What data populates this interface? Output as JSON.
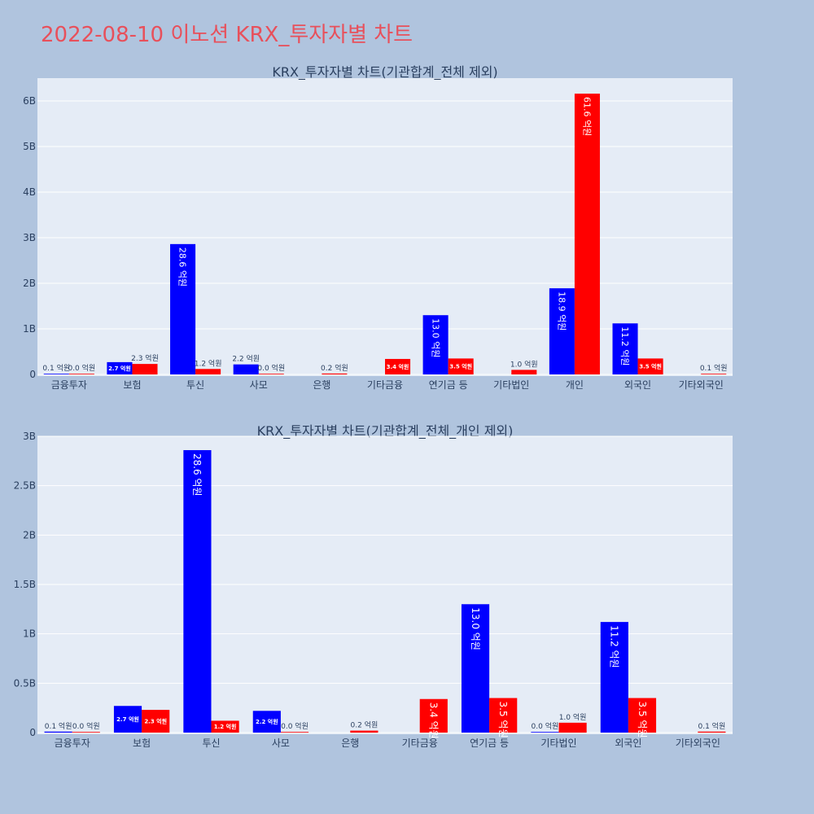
{
  "page_title": "2022-08-10 이노션 KRX_투자자별 차트",
  "colors": {
    "buy": "#0000ff",
    "sell": "#ff0000",
    "plot_bg": "#e5ecf6",
    "page_bg": "#b0c4de",
    "title": "#e8505b"
  },
  "chart_data": [
    {
      "type": "bar",
      "title": "KRX_투자자별 차트(기관합계_전체 제외)",
      "categories": [
        "금융투자",
        "보험",
        "투신",
        "사모",
        "은행",
        "기타금융",
        "연기금 등",
        "기타법인",
        "개인",
        "외국인",
        "기타외국인"
      ],
      "series": [
        {
          "color": "#0000ff",
          "values": [
            10000000,
            270000000,
            2860000000,
            220000000,
            null,
            null,
            1300000000,
            null,
            1890000000,
            1120000000,
            null
          ],
          "labels": [
            "0.1 억원",
            "2.7 억원",
            "28.6 억원",
            "2.2 억원",
            null,
            null,
            "13.0 억원",
            null,
            "18.9 억원",
            "11.2 억원",
            null
          ]
        },
        {
          "color": "#ff0000",
          "values": [
            0,
            230000000,
            120000000,
            0,
            20000000,
            340000000,
            350000000,
            100000000,
            6160000000,
            350000000,
            10000000
          ],
          "labels": [
            "0.0 억원",
            "2.3 억원",
            "1.2 억원",
            "0.0 억원",
            "0.2 억원",
            "3.4 억원",
            "3.5 억원",
            "1.0 억원",
            "61.6 억원",
            "3.5 억원",
            "0.1 억원"
          ]
        }
      ],
      "ylim": [
        0,
        6500000000
      ],
      "yticks": [
        0,
        1000000000,
        2000000000,
        3000000000,
        4000000000,
        5000000000,
        6000000000
      ],
      "ytick_labels": [
        "0",
        "1B",
        "2B",
        "3B",
        "4B",
        "5B",
        "6B"
      ],
      "grid": true
    },
    {
      "type": "bar",
      "title": "KRX_투자자별 차트(기관합계_전체_개인 제외)",
      "categories": [
        "금융투자",
        "보험",
        "투신",
        "사모",
        "은행",
        "기타금융",
        "연기금 등",
        "기타법인",
        "외국인",
        "기타외국인"
      ],
      "series": [
        {
          "color": "#0000ff",
          "values": [
            10000000,
            270000000,
            2860000000,
            220000000,
            null,
            null,
            1300000000,
            0,
            1120000000,
            null
          ],
          "labels": [
            "0.1 억원",
            "2.7 억원",
            "28.6 억원",
            "2.2 억원",
            null,
            null,
            "13.0 억원",
            "0.0 억원",
            "11.2 억원",
            null
          ]
        },
        {
          "color": "#ff0000",
          "values": [
            0,
            230000000,
            120000000,
            0,
            20000000,
            340000000,
            350000000,
            100000000,
            350000000,
            10000000
          ],
          "labels": [
            "0.0 억원",
            "2.3 억원",
            "1.2 억원",
            "0.0 억원",
            "0.2 억원",
            "3.4 억원",
            "3.5 억원",
            "1.0 억원",
            "3.5 억원",
            "0.1 억원"
          ]
        }
      ],
      "ylim": [
        0,
        3000000000
      ],
      "yticks": [
        0,
        500000000,
        1000000000,
        1500000000,
        2000000000,
        2500000000,
        3000000000
      ],
      "ytick_labels": [
        "0",
        "0.5B",
        "1B",
        "1.5B",
        "2B",
        "2.5B",
        "3B"
      ],
      "grid": true
    }
  ]
}
